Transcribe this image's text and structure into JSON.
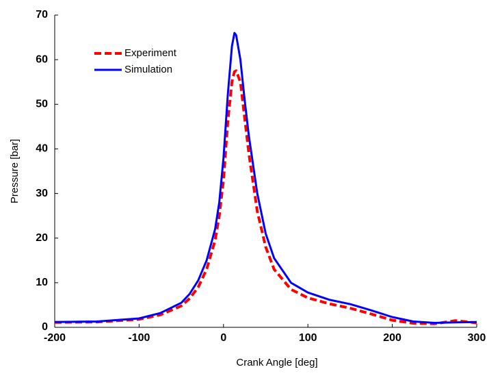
{
  "chart_data": {
    "type": "line",
    "xlabel": "Crank Angle [deg]",
    "ylabel": "Pressure [bar]",
    "x": [
      -200,
      -150,
      -100,
      -75,
      -50,
      -40,
      -30,
      -20,
      -10,
      -5,
      0,
      5,
      10,
      13,
      15,
      20,
      25,
      30,
      40,
      50,
      60,
      80,
      100,
      125,
      150,
      175,
      200,
      225,
      250,
      275,
      300
    ],
    "series": [
      {
        "name": "Experiment",
        "color": "#ff0000",
        "dashed": true,
        "values": [
          1.1,
          1.2,
          1.8,
          2.8,
          4.8,
          6.5,
          9,
          13,
          19.5,
          25,
          33,
          46,
          55,
          57.3,
          57.5,
          55,
          47,
          39,
          26,
          18,
          13,
          8.5,
          6.6,
          5.3,
          4.3,
          3,
          1.6,
          0.9,
          0.8,
          1.5,
          1
        ]
      },
      {
        "name": "Simulation",
        "color": "#0000ff",
        "dashed": false,
        "values": [
          1.2,
          1.3,
          2,
          3.2,
          5.5,
          7.5,
          10.5,
          15,
          22,
          28,
          38,
          52,
          63,
          66,
          65.5,
          60,
          51,
          43,
          30,
          21,
          15.5,
          10,
          7.8,
          6.2,
          5.2,
          3.8,
          2.3,
          1.3,
          1,
          1.1,
          1.2
        ]
      }
    ],
    "xlim": [
      -200,
      300
    ],
    "xticks": [
      -200,
      -100,
      0,
      100,
      200,
      300
    ],
    "ylim": [
      0,
      70
    ],
    "yticks": [
      0,
      10,
      20,
      30,
      40,
      50,
      60,
      70
    ],
    "legend": "upper left"
  }
}
